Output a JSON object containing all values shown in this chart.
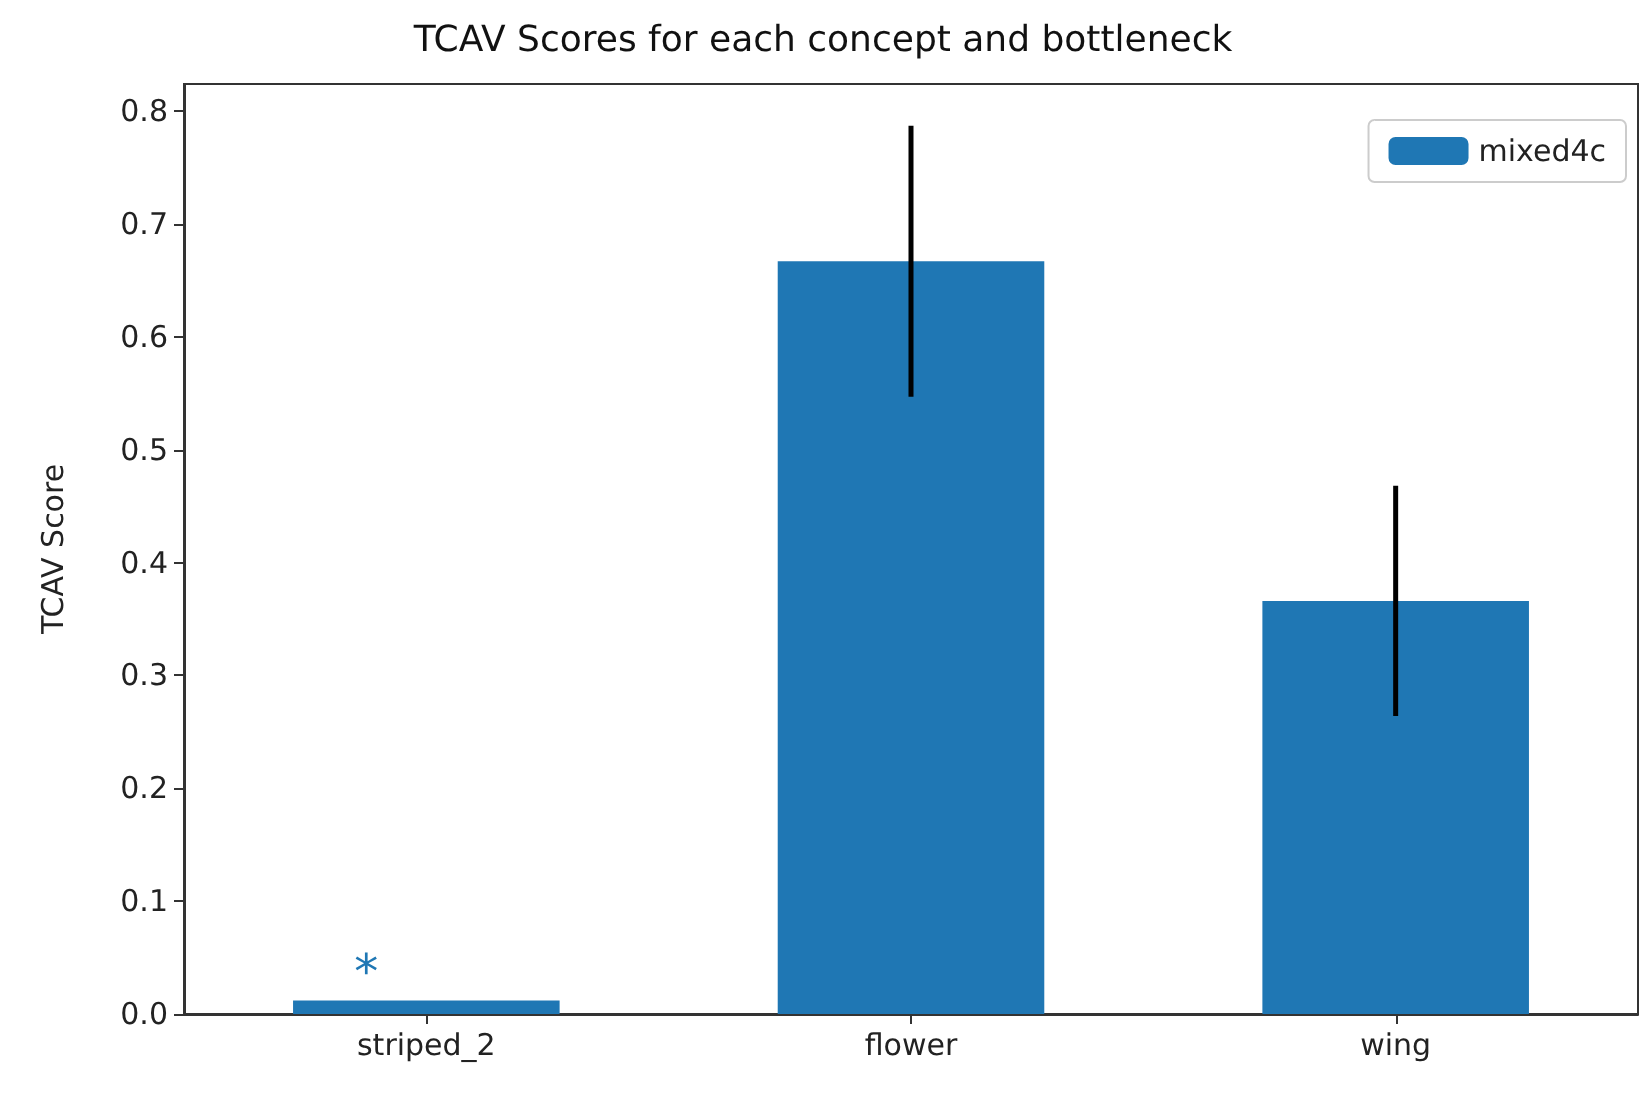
{
  "chart_data": {
    "type": "bar",
    "title": "TCAV Scores for each concept and bottleneck",
    "ylabel": "TCAV Score",
    "categories": [
      "striped_2",
      "flower",
      "wing"
    ],
    "series": [
      {
        "name": "mixed4c",
        "color": "#1f77b4",
        "values": [
          0.012,
          0.667,
          0.366
        ],
        "errors": [
          null,
          0.12,
          0.102
        ]
      }
    ],
    "ylim": [
      0,
      0.824
    ],
    "yticks": [
      {
        "value": 0,
        "label": "0.0"
      },
      0.1,
      0.2,
      0.3,
      0.4,
      0.5,
      0.6,
      0.7,
      0.8
    ],
    "annotations": [
      "*"
    ],
    "legend": "top right",
    "grid": false
  }
}
